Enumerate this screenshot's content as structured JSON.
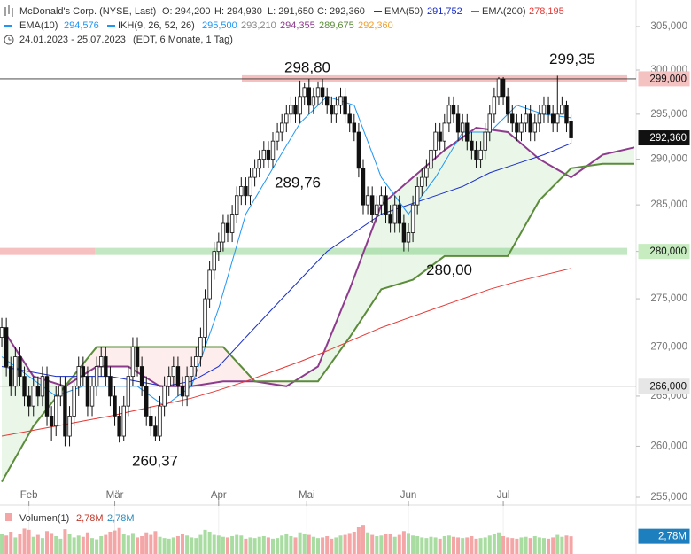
{
  "chart_data": {
    "type": "candlestick",
    "header": {
      "name": "McDonald's Corp. (NYSE, Last)",
      "open": "O: 294,200",
      "high": "H: 294,930",
      "low": "L: 291,650",
      "close": "C: 292,360",
      "range": "24.01.2023 - 25.07.2023",
      "info": "(EDT, 6 Monate, 1 Tag)"
    },
    "log": true,
    "xlim": [
      -0.4,
      140.4
    ],
    "ylim": [
      254.4,
      308.1
    ],
    "xticks": [
      {
        "value": 6,
        "label": "Feb"
      },
      {
        "value": 25,
        "label": "Mär"
      },
      {
        "value": 48,
        "label": "Apr"
      },
      {
        "value": 67.5,
        "label": "Mai"
      },
      {
        "value": 90,
        "label": "Jun"
      },
      {
        "value": 111,
        "label": "Jul"
      }
    ],
    "yticks": [
      {
        "value": 255,
        "label": "255,000"
      },
      {
        "value": 260,
        "label": "260,000"
      },
      {
        "value": 265,
        "label": "265,000"
      },
      {
        "value": 270,
        "label": "270,000"
      },
      {
        "value": 275,
        "label": "275,000"
      },
      {
        "value": 280,
        "label": "280,000"
      },
      {
        "value": 285,
        "label": "285,000"
      },
      {
        "value": 290,
        "label": "290,000"
      },
      {
        "value": 295,
        "label": "295,000"
      },
      {
        "value": 300,
        "label": "300,000"
      },
      {
        "value": 305,
        "label": "305,000"
      }
    ],
    "candles": [
      [
        271,
        273,
        270,
        272
      ],
      [
        272,
        273,
        267,
        268
      ],
      [
        268,
        269,
        265,
        266
      ],
      [
        266,
        270,
        265,
        269
      ],
      [
        269,
        270,
        266,
        267
      ],
      [
        267,
        268,
        264,
        265
      ],
      [
        265,
        266,
        263,
        264
      ],
      [
        264,
        267,
        263,
        266
      ],
      [
        266,
        267,
        264,
        265
      ],
      [
        265,
        268,
        264,
        267
      ],
      [
        267,
        268,
        262,
        263
      ],
      [
        263,
        264,
        260.5,
        262
      ],
      [
        262,
        266,
        261,
        265
      ],
      [
        265,
        267,
        264,
        266
      ],
      [
        266,
        267,
        260,
        261
      ],
      [
        261,
        264,
        260,
        263
      ],
      [
        263,
        267,
        262,
        266
      ],
      [
        266,
        269,
        265,
        268
      ],
      [
        268,
        269,
        266,
        267
      ],
      [
        267,
        268,
        263,
        264
      ],
      [
        264,
        267,
        263,
        266
      ],
      [
        266,
        269,
        265,
        268
      ],
      [
        268,
        270,
        267,
        269
      ],
      [
        269,
        270,
        266,
        267
      ],
      [
        267,
        268,
        264,
        265
      ],
      [
        265,
        266,
        262,
        263
      ],
      [
        263,
        264,
        260.37,
        261
      ],
      [
        261,
        265,
        260.5,
        264
      ],
      [
        264,
        268,
        263,
        267
      ],
      [
        267,
        271,
        266,
        270
      ],
      [
        270,
        271,
        267,
        268
      ],
      [
        268,
        269,
        265,
        266
      ],
      [
        266,
        267,
        262,
        263
      ],
      [
        263,
        264,
        261,
        262
      ],
      [
        262,
        263,
        260.5,
        261
      ],
      [
        261,
        265,
        260.5,
        264
      ],
      [
        264,
        267,
        263,
        266
      ],
      [
        266,
        268,
        265,
        267
      ],
      [
        267,
        269,
        266,
        268
      ],
      [
        268,
        269,
        265,
        266
      ],
      [
        266,
        267,
        264,
        265
      ],
      [
        265,
        268,
        264,
        267
      ],
      [
        267,
        269,
        266,
        268
      ],
      [
        268,
        270,
        267,
        269
      ],
      [
        269,
        272,
        268,
        271
      ],
      [
        271,
        276,
        270,
        275
      ],
      [
        275,
        279,
        274,
        278
      ],
      [
        278,
        281,
        277,
        280
      ],
      [
        280,
        282,
        279,
        281
      ],
      [
        281,
        284,
        280,
        283
      ],
      [
        283,
        284,
        281,
        282
      ],
      [
        282,
        285,
        281,
        284
      ],
      [
        284,
        287,
        283,
        286
      ],
      [
        286,
        288,
        285,
        287
      ],
      [
        287,
        288,
        285,
        286
      ],
      [
        286,
        289,
        285,
        288
      ],
      [
        288,
        290,
        287,
        289
      ],
      [
        289,
        291,
        288,
        290
      ],
      [
        290,
        292,
        289,
        291
      ],
      [
        291,
        292,
        289,
        290
      ],
      [
        290,
        293,
        289,
        292
      ],
      [
        292,
        294,
        291,
        293
      ],
      [
        293,
        295,
        292,
        294
      ],
      [
        294,
        296,
        293,
        295
      ],
      [
        295,
        297,
        294,
        296
      ],
      [
        296,
        297,
        294,
        295
      ],
      [
        295,
        298.8,
        294,
        297
      ],
      [
        297,
        298.5,
        296,
        298
      ],
      [
        298,
        299,
        295,
        296
      ],
      [
        296,
        298,
        295,
        297
      ],
      [
        297,
        298.7,
        296,
        298
      ],
      [
        298,
        299,
        296,
        297
      ],
      [
        297,
        298,
        295,
        296
      ],
      [
        296,
        297,
        294,
        295
      ],
      [
        295,
        297,
        294,
        296
      ],
      [
        296,
        298,
        295,
        297
      ],
      [
        297,
        298,
        294,
        295
      ],
      [
        295,
        296,
        293,
        294
      ],
      [
        294,
        295,
        292,
        293
      ],
      [
        293,
        294,
        288,
        289
      ],
      [
        289,
        290,
        284,
        285
      ],
      [
        285,
        287,
        284,
        286
      ],
      [
        286,
        287,
        283,
        284
      ],
      [
        284,
        286,
        283,
        285
      ],
      [
        285,
        287,
        284,
        286
      ],
      [
        286,
        287,
        283,
        284
      ],
      [
        284,
        285,
        282,
        283
      ],
      [
        283,
        286,
        282,
        285
      ],
      [
        285,
        286,
        282,
        283
      ],
      [
        283,
        284,
        280,
        281
      ],
      [
        281,
        283,
        280,
        282
      ],
      [
        282,
        286,
        281,
        285
      ],
      [
        285,
        288,
        284,
        287
      ],
      [
        287,
        289,
        286,
        288
      ],
      [
        288,
        290,
        287,
        289
      ],
      [
        289,
        292,
        288,
        291
      ],
      [
        291,
        294,
        290,
        293
      ],
      [
        293,
        294,
        291,
        292
      ],
      [
        292,
        295,
        291,
        294
      ],
      [
        294,
        297,
        293,
        296
      ],
      [
        296,
        297,
        294,
        295
      ],
      [
        295,
        296,
        292,
        293
      ],
      [
        293,
        295,
        292,
        294
      ],
      [
        294,
        295,
        291,
        292
      ],
      [
        292,
        293,
        290,
        291
      ],
      [
        291,
        292,
        289,
        290
      ],
      [
        290,
        292,
        289,
        291
      ],
      [
        291,
        294,
        290,
        293
      ],
      [
        293,
        296,
        292,
        295
      ],
      [
        295,
        298,
        294,
        297
      ],
      [
        297,
        299.2,
        296,
        299
      ],
      [
        299,
        299.2,
        296,
        297
      ],
      [
        297,
        298,
        294,
        295
      ],
      [
        295,
        296,
        293,
        294
      ],
      [
        294,
        295,
        292,
        293
      ],
      [
        293,
        295,
        292,
        294
      ],
      [
        294,
        296,
        293,
        295
      ],
      [
        295,
        296,
        292,
        293
      ],
      [
        293,
        295,
        292,
        294
      ],
      [
        294,
        296,
        293,
        295
      ],
      [
        295,
        297,
        294,
        296
      ],
      [
        296,
        297,
        294,
        295
      ],
      [
        295,
        296,
        293,
        294
      ],
      [
        294,
        299.35,
        293,
        295
      ],
      [
        295,
        297,
        295,
        296
      ],
      [
        296,
        296.5,
        293,
        294
      ],
      [
        294.2,
        294.93,
        291.65,
        292.36
      ]
    ],
    "lines": [
      {
        "name": "EMA(10)",
        "color": "#2196f3",
        "header_value": "294,576",
        "x": [
          0,
          6,
          12,
          18,
          24,
          30,
          36,
          42,
          48,
          54,
          60,
          66,
          72,
          78,
          84,
          90,
          96,
          102,
          108,
          114,
          120,
          126
        ],
        "values": [
          269,
          267,
          265,
          266,
          266,
          266,
          264,
          266,
          274,
          284,
          289,
          294,
          297,
          296,
          288,
          284,
          288,
          293,
          293,
          296,
          295,
          294.6
        ]
      },
      {
        "name": "EMA(50)",
        "color": "#1a2fc9",
        "header_value": "291,752",
        "x": [
          0,
          6,
          12,
          18,
          24,
          30,
          36,
          42,
          48,
          54,
          60,
          66,
          72,
          78,
          84,
          90,
          96,
          102,
          108,
          114,
          120,
          126
        ],
        "values": [
          268,
          267.5,
          267,
          267,
          267,
          266.5,
          266,
          266.5,
          268,
          271,
          274,
          277,
          280,
          282,
          284,
          285,
          286,
          287,
          288.5,
          289.5,
          290.5,
          291.75
        ]
      },
      {
        "name": "EMA(200)",
        "color": "#e53935",
        "header_value": "278,195",
        "x": [
          0,
          6,
          12,
          18,
          24,
          30,
          36,
          42,
          48,
          54,
          60,
          66,
          72,
          78,
          84,
          90,
          96,
          102,
          108,
          114,
          120,
          126
        ],
        "values": [
          261,
          261.5,
          262,
          262.5,
          263,
          263.6,
          264.2,
          264.8,
          265.6,
          266.5,
          267.5,
          268.5,
          269.6,
          270.8,
          272,
          273,
          274,
          275,
          276,
          276.8,
          277.5,
          278.2
        ]
      }
    ],
    "ichimoku": {
      "name": "IKH(9, 26, 52, 26)",
      "color": "#2196f3",
      "header_values": [
        {
          "label": "295,500",
          "color": "#2196f3"
        },
        {
          "label": "293,210",
          "color": "#888888"
        },
        {
          "label": "294,355",
          "color": "#8e3b8e"
        },
        {
          "label": "289,675",
          "color": "#5b8c3a"
        },
        {
          "label": "292,360",
          "color": "#f0a030"
        }
      ],
      "x": [
        0,
        7,
        14,
        21,
        28,
        35,
        42,
        49,
        56,
        63,
        70,
        77,
        84,
        91,
        98,
        105,
        112,
        119,
        126,
        133,
        140
      ],
      "span_a": {
        "color": "#8e3b8e",
        "values": [
          272,
          267,
          266,
          268,
          268,
          266,
          266,
          266.5,
          266.5,
          266,
          268,
          276,
          285,
          288,
          291,
          293.5,
          293,
          290,
          288,
          290.5,
          291.3
        ]
      },
      "span_b": {
        "color": "#5b8c3a",
        "values": [
          256.5,
          262,
          266,
          270,
          270,
          270,
          270,
          270,
          266.5,
          266.5,
          266.5,
          271,
          276,
          277,
          279.5,
          279.5,
          279.5,
          285.5,
          289,
          289.5,
          289.5
        ]
      }
    },
    "levels": [
      {
        "value": 299,
        "label": "299,000",
        "color": "#f08c8c"
      },
      {
        "value": 280,
        "label": "280,000",
        "color": "#8fd48f"
      },
      {
        "value": 266,
        "label": "266,000",
        "color": "#555555"
      }
    ],
    "last_price": {
      "value": 292.36,
      "label": "292,360"
    },
    "annotations": [
      {
        "value": 298.8,
        "label": "298,80"
      },
      {
        "value": 299.35,
        "label": "299,35"
      },
      {
        "value": 289.76,
        "label": "289,76"
      },
      {
        "value": 280,
        "label": "280,00"
      },
      {
        "value": 260.37,
        "label": "260,37"
      }
    ],
    "volume": {
      "title": "Volumen(1)",
      "header_values": [
        "2,78M",
        "2,78M"
      ],
      "ylim": [
        0,
        7
      ],
      "last": {
        "value": 2.78,
        "label": "2,78M"
      },
      "values": [
        3.2,
        2.9,
        3.5,
        2.6,
        3.1,
        4.0,
        3.8,
        2.7,
        3.0,
        2.5,
        3.6,
        3.3,
        2.8,
        2.4,
        3.9,
        3.1,
        2.6,
        2.9,
        2.7,
        3.4,
        2.5,
        2.3,
        2.8,
        3.0,
        3.5,
        3.7,
        4.1,
        3.2,
        2.9,
        3.3,
        2.6,
        2.8,
        3.4,
        3.0,
        3.6,
        2.7,
        2.5,
        2.4,
        2.6,
        2.8,
        3.1,
        2.9,
        2.6,
        2.5,
        3.0,
        3.8,
        3.5,
        3.0,
        2.9,
        2.7,
        2.6,
        2.8,
        3.0,
        2.9,
        2.4,
        2.6,
        2.5,
        2.7,
        2.8,
        2.6,
        2.4,
        2.5,
        2.9,
        3.1,
        2.8,
        2.6,
        3.4,
        3.2,
        3.0,
        2.7,
        2.5,
        2.6,
        2.8,
        2.4,
        2.6,
        2.9,
        3.0,
        3.3,
        3.5,
        4.2,
        4.6,
        3.4,
        3.0,
        2.8,
        2.9,
        3.1,
        3.2,
        2.7,
        3.0,
        3.6,
        3.3,
        2.9,
        2.8,
        2.6,
        2.5,
        2.7,
        2.6,
        2.4,
        2.8,
        2.9,
        2.7,
        2.6,
        2.5,
        2.6,
        2.8,
        2.4,
        2.5,
        2.6,
        2.9,
        3.1,
        3.4,
        2.8,
        2.6,
        2.5,
        2.4,
        2.6,
        2.7,
        2.5,
        2.8,
        2.6,
        2.5,
        2.4,
        2.6,
        3.0,
        2.7,
        2.9,
        2.78
      ]
    }
  }
}
